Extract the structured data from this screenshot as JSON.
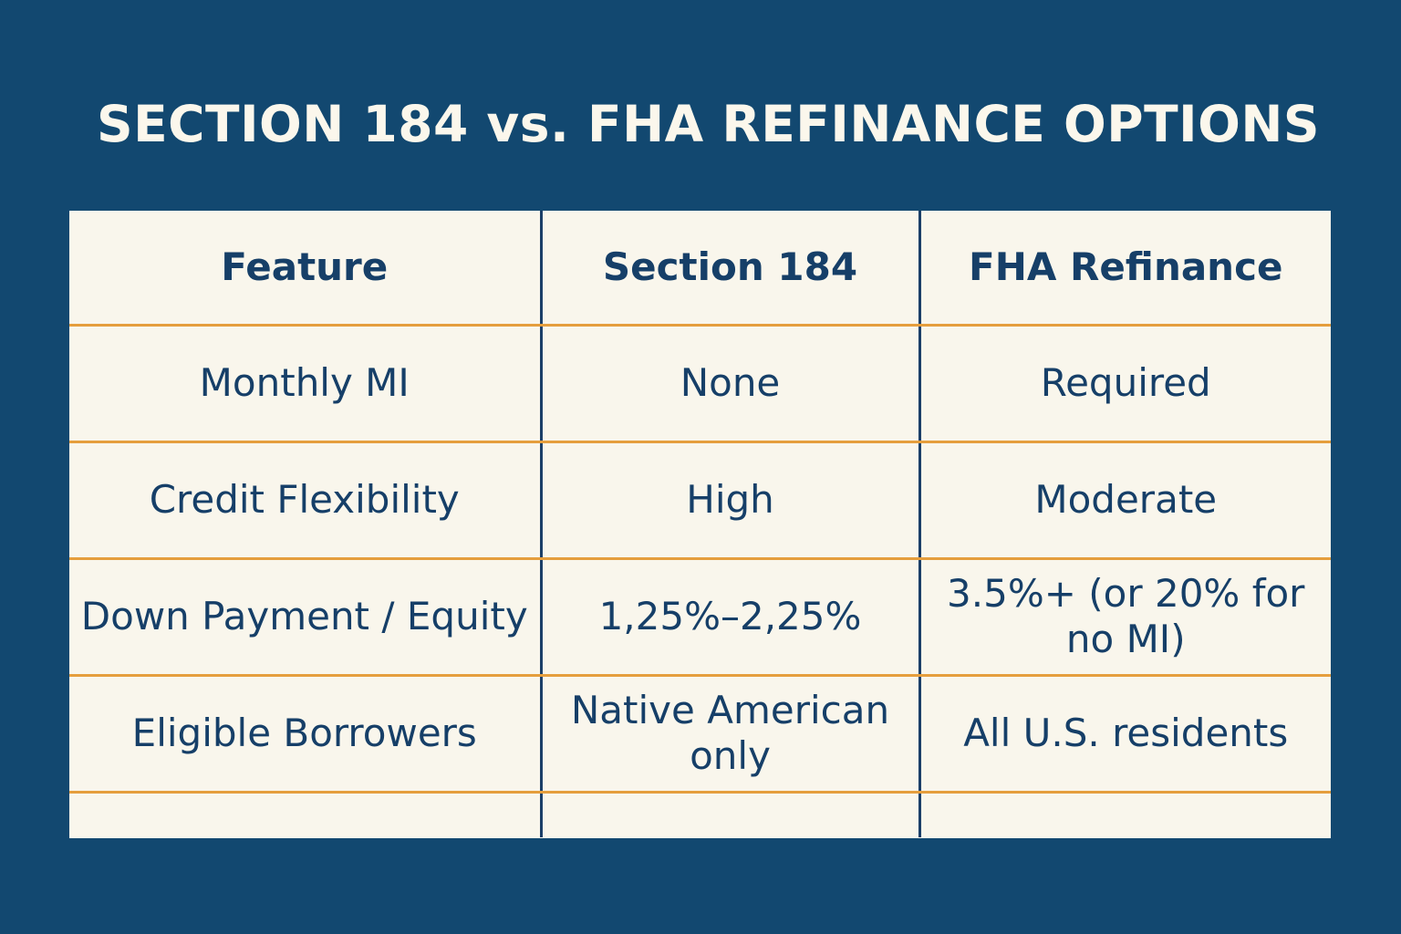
{
  "title": "SECTION 184 vs. FHA REFINANCE OPTIONS",
  "colors": {
    "background": "#124870",
    "table_background": "#f9f6ec",
    "text": "#163f68",
    "row_divider": "#e59e3d",
    "column_divider": "#1b3f68",
    "title_text": "#fbf7ec"
  },
  "table": {
    "headers": [
      "Feature",
      "Section 184",
      "FHA Refinance"
    ],
    "rows": [
      [
        "Monthly MI",
        "None",
        "Required"
      ],
      [
        "Credit Flexibility",
        "High",
        "Moderate"
      ],
      [
        "Down Payment / Equity",
        "1,25%–2,25%",
        "3.5%+ (or 20% for no MI)"
      ],
      [
        "Eligible Borrowers",
        "Native American only",
        "All U.S. residents"
      ]
    ]
  }
}
